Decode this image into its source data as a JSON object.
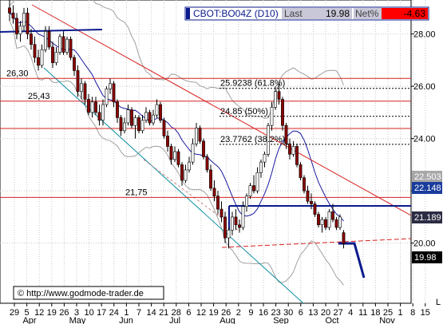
{
  "header": {
    "symbol": "CBOT:BO04Z (D10)",
    "last_label": "Last",
    "last_value": "19.98",
    "netpct_label": "Net%",
    "netpct_value": "-4.63"
  },
  "watermark": "© http://www.godmode-trader.de",
  "colors": {
    "candle_up": "#ffffff",
    "candle_down": "#8b0000",
    "outline": "#000000",
    "resistance": "#d62020",
    "trend_channel": "#0a8fa0",
    "sma_short": "#1a1aa0",
    "bollinger": "#a0a0a0",
    "level_box": "#0a1a8c",
    "last_box": "#000000",
    "net_box": "#ff0000",
    "header_box": "#0a1a8c"
  },
  "chart_data": {
    "type": "candlestick",
    "title": "",
    "x_months": [
      "Apr",
      "May",
      "Jun",
      "Jul",
      "Aug",
      "Sep",
      "Oct",
      "Nov"
    ],
    "x_ticks": [
      "29",
      "5",
      "12",
      "19",
      "26",
      "3",
      "10",
      "17",
      "24",
      "1",
      "7",
      "14",
      "21",
      "28",
      "6",
      "12",
      "19",
      "26",
      "2",
      "9",
      "16",
      "23",
      "30",
      "6",
      "13",
      "20",
      "27",
      "4",
      "11",
      "18",
      "25",
      "1",
      "8",
      "15"
    ],
    "y_ticks": [
      20,
      22,
      24,
      26,
      28
    ],
    "ylim": [
      17.7,
      29.3
    ],
    "price_axis_labels": [
      {
        "label": "22.503",
        "style": "gray"
      },
      {
        "label": "22.148",
        "style": "blue"
      },
      {
        "label": "21.189",
        "style": "dark"
      },
      {
        "label": "19.98",
        "style": "black"
      }
    ],
    "horizontal_levels": [
      {
        "label": "26,30",
        "value": 26.3
      },
      {
        "label": "25,43",
        "value": 25.43
      },
      {
        "label": "21,75",
        "value": 21.75
      }
    ],
    "fibonacci_levels": [
      {
        "label": "25.9238 (61.8%)",
        "value": 25.92
      },
      {
        "label": "24.85 (50%)",
        "value": 24.85
      },
      {
        "label": "23.7762 (38.2%)",
        "value": 23.78
      }
    ],
    "candles": [
      {
        "o": 29.0,
        "h": 29.3,
        "l": 28.5,
        "c": 28.8
      },
      {
        "o": 28.8,
        "h": 29.1,
        "l": 28.4,
        "c": 28.6
      },
      {
        "o": 28.6,
        "h": 28.8,
        "l": 27.8,
        "c": 28.0
      },
      {
        "o": 28.0,
        "h": 28.5,
        "l": 27.7,
        "c": 28.3
      },
      {
        "o": 28.3,
        "h": 29.0,
        "l": 28.1,
        "c": 28.8
      },
      {
        "o": 28.8,
        "h": 29.0,
        "l": 27.8,
        "c": 28.0
      },
      {
        "o": 28.0,
        "h": 28.2,
        "l": 27.4,
        "c": 27.6
      },
      {
        "o": 27.6,
        "h": 27.9,
        "l": 26.9,
        "c": 27.1
      },
      {
        "o": 27.1,
        "h": 27.4,
        "l": 26.6,
        "c": 26.8
      },
      {
        "o": 26.8,
        "h": 27.6,
        "l": 26.7,
        "c": 27.4
      },
      {
        "o": 27.4,
        "h": 28.3,
        "l": 27.3,
        "c": 28.1
      },
      {
        "o": 28.1,
        "h": 28.3,
        "l": 27.4,
        "c": 27.5
      },
      {
        "o": 27.5,
        "h": 27.7,
        "l": 26.7,
        "c": 26.9
      },
      {
        "o": 26.9,
        "h": 27.5,
        "l": 26.8,
        "c": 27.3
      },
      {
        "o": 27.3,
        "h": 28.0,
        "l": 27.2,
        "c": 27.9
      },
      {
        "o": 27.9,
        "h": 28.1,
        "l": 27.2,
        "c": 27.3
      },
      {
        "o": 27.3,
        "h": 27.9,
        "l": 27.2,
        "c": 27.8
      },
      {
        "o": 27.8,
        "h": 27.9,
        "l": 27.0,
        "c": 27.1
      },
      {
        "o": 27.1,
        "h": 27.2,
        "l": 26.4,
        "c": 26.6
      },
      {
        "o": 26.6,
        "h": 26.8,
        "l": 25.6,
        "c": 25.8
      },
      {
        "o": 25.8,
        "h": 26.3,
        "l": 25.5,
        "c": 26.1
      },
      {
        "o": 26.1,
        "h": 26.2,
        "l": 25.3,
        "c": 25.5
      },
      {
        "o": 25.5,
        "h": 25.7,
        "l": 24.9,
        "c": 25.0
      },
      {
        "o": 25.0,
        "h": 25.6,
        "l": 24.8,
        "c": 25.4
      },
      {
        "o": 25.4,
        "h": 25.6,
        "l": 24.9,
        "c": 25.0
      },
      {
        "o": 25.0,
        "h": 25.3,
        "l": 24.5,
        "c": 24.7
      },
      {
        "o": 24.7,
        "h": 25.5,
        "l": 24.5,
        "c": 25.3
      },
      {
        "o": 25.3,
        "h": 26.0,
        "l": 25.2,
        "c": 25.9
      },
      {
        "o": 25.9,
        "h": 26.3,
        "l": 25.7,
        "c": 26.1
      },
      {
        "o": 26.1,
        "h": 26.2,
        "l": 25.2,
        "c": 25.4
      },
      {
        "o": 25.4,
        "h": 25.5,
        "l": 24.6,
        "c": 24.8
      },
      {
        "o": 24.8,
        "h": 24.9,
        "l": 24.1,
        "c": 24.3
      },
      {
        "o": 24.3,
        "h": 24.8,
        "l": 24.2,
        "c": 24.6
      },
      {
        "o": 24.6,
        "h": 25.3,
        "l": 24.5,
        "c": 25.1
      },
      {
        "o": 25.1,
        "h": 25.2,
        "l": 24.4,
        "c": 24.5
      },
      {
        "o": 24.5,
        "h": 24.9,
        "l": 24.0,
        "c": 24.8
      },
      {
        "o": 24.8,
        "h": 24.9,
        "l": 24.2,
        "c": 24.3
      },
      {
        "o": 24.3,
        "h": 24.9,
        "l": 24.2,
        "c": 24.7
      },
      {
        "o": 24.7,
        "h": 25.2,
        "l": 24.6,
        "c": 25.0
      },
      {
        "o": 25.0,
        "h": 25.1,
        "l": 24.5,
        "c": 24.6
      },
      {
        "o": 24.6,
        "h": 25.1,
        "l": 24.5,
        "c": 24.9
      },
      {
        "o": 24.9,
        "h": 25.5,
        "l": 24.8,
        "c": 25.3
      },
      {
        "o": 25.3,
        "h": 25.4,
        "l": 24.6,
        "c": 24.7
      },
      {
        "o": 24.7,
        "h": 24.8,
        "l": 24.0,
        "c": 24.1
      },
      {
        "o": 24.1,
        "h": 24.3,
        "l": 23.5,
        "c": 23.7
      },
      {
        "o": 23.7,
        "h": 23.8,
        "l": 23.0,
        "c": 23.2
      },
      {
        "o": 23.2,
        "h": 23.7,
        "l": 23.1,
        "c": 23.5
      },
      {
        "o": 23.5,
        "h": 23.6,
        "l": 22.9,
        "c": 23.0
      },
      {
        "o": 23.0,
        "h": 23.1,
        "l": 22.2,
        "c": 22.4
      },
      {
        "o": 22.4,
        "h": 23.0,
        "l": 22.3,
        "c": 22.8
      },
      {
        "o": 22.8,
        "h": 23.3,
        "l": 22.7,
        "c": 23.1
      },
      {
        "o": 23.1,
        "h": 24.0,
        "l": 23.0,
        "c": 23.8
      },
      {
        "o": 23.8,
        "h": 24.6,
        "l": 23.7,
        "c": 24.4
      },
      {
        "o": 24.4,
        "h": 24.5,
        "l": 23.8,
        "c": 23.9
      },
      {
        "o": 23.9,
        "h": 24.0,
        "l": 23.2,
        "c": 23.3
      },
      {
        "o": 23.3,
        "h": 23.4,
        "l": 22.7,
        "c": 22.8
      },
      {
        "o": 22.8,
        "h": 23.0,
        "l": 22.0,
        "c": 22.1
      },
      {
        "o": 22.1,
        "h": 22.4,
        "l": 21.6,
        "c": 21.8
      },
      {
        "o": 21.8,
        "h": 22.0,
        "l": 21.1,
        "c": 21.3
      },
      {
        "o": 21.3,
        "h": 21.6,
        "l": 20.8,
        "c": 21.0
      },
      {
        "o": 21.0,
        "h": 21.2,
        "l": 20.0,
        "c": 20.2
      },
      {
        "o": 20.2,
        "h": 20.6,
        "l": 19.8,
        "c": 20.5
      },
      {
        "o": 20.5,
        "h": 21.2,
        "l": 20.3,
        "c": 21.0
      },
      {
        "o": 21.0,
        "h": 21.3,
        "l": 20.5,
        "c": 20.7
      },
      {
        "o": 20.7,
        "h": 20.9,
        "l": 20.4,
        "c": 20.6
      },
      {
        "o": 20.6,
        "h": 21.6,
        "l": 20.5,
        "c": 21.4
      },
      {
        "o": 21.4,
        "h": 21.9,
        "l": 21.2,
        "c": 21.8
      },
      {
        "o": 21.8,
        "h": 22.3,
        "l": 21.7,
        "c": 22.2
      },
      {
        "o": 22.2,
        "h": 22.6,
        "l": 21.9,
        "c": 22.0
      },
      {
        "o": 22.0,
        "h": 22.9,
        "l": 21.9,
        "c": 22.7
      },
      {
        "o": 22.7,
        "h": 23.2,
        "l": 22.5,
        "c": 23.1
      },
      {
        "o": 23.1,
        "h": 23.5,
        "l": 22.9,
        "c": 23.4
      },
      {
        "o": 23.4,
        "h": 24.6,
        "l": 23.3,
        "c": 24.5
      },
      {
        "o": 24.5,
        "h": 25.4,
        "l": 24.3,
        "c": 25.2
      },
      {
        "o": 25.2,
        "h": 26.0,
        "l": 25.1,
        "c": 25.8
      },
      {
        "o": 25.8,
        "h": 26.1,
        "l": 25.3,
        "c": 25.5
      },
      {
        "o": 25.5,
        "h": 25.6,
        "l": 24.3,
        "c": 24.5
      },
      {
        "o": 24.5,
        "h": 24.6,
        "l": 23.6,
        "c": 23.8
      },
      {
        "o": 23.8,
        "h": 24.0,
        "l": 23.2,
        "c": 23.4
      },
      {
        "o": 23.4,
        "h": 23.9,
        "l": 23.3,
        "c": 23.7
      },
      {
        "o": 23.7,
        "h": 23.8,
        "l": 22.9,
        "c": 23.0
      },
      {
        "o": 23.0,
        "h": 23.1,
        "l": 22.4,
        "c": 22.5
      },
      {
        "o": 22.5,
        "h": 22.6,
        "l": 21.9,
        "c": 22.0
      },
      {
        "o": 22.0,
        "h": 22.2,
        "l": 21.5,
        "c": 21.6
      },
      {
        "o": 21.6,
        "h": 21.9,
        "l": 21.3,
        "c": 21.5
      },
      {
        "o": 21.5,
        "h": 21.6,
        "l": 21.0,
        "c": 21.1
      },
      {
        "o": 21.1,
        "h": 21.2,
        "l": 20.6,
        "c": 20.7
      },
      {
        "o": 20.7,
        "h": 21.0,
        "l": 20.4,
        "c": 20.9
      },
      {
        "o": 20.9,
        "h": 21.0,
        "l": 20.5,
        "c": 20.6
      },
      {
        "o": 20.6,
        "h": 21.3,
        "l": 20.5,
        "c": 21.2
      },
      {
        "o": 21.2,
        "h": 21.5,
        "l": 20.8,
        "c": 20.9
      },
      {
        "o": 20.9,
        "h": 21.0,
        "l": 20.5,
        "c": 20.6
      },
      {
        "o": 20.6,
        "h": 21.1,
        "l": 20.5,
        "c": 21.0
      },
      {
        "o": 20.4,
        "h": 20.5,
        "l": 19.8,
        "c": 19.98
      }
    ]
  }
}
